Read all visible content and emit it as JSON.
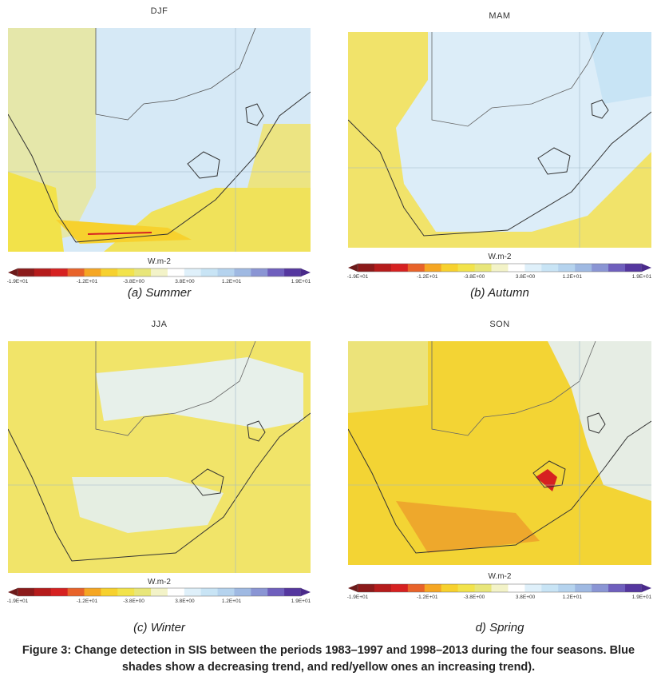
{
  "units": "W.m-2",
  "colorbar_colors": [
    "#8b1a1a",
    "#b51c1c",
    "#d62121",
    "#e8632a",
    "#f5a623",
    "#f7d12e",
    "#f2e34b",
    "#e8e67a",
    "#f3f3c8",
    "#ffffff",
    "#dff0fa",
    "#c8e4f5",
    "#b5d3ee",
    "#9fb9e2",
    "#8a95d4",
    "#6f5fbd",
    "#55379f"
  ],
  "colorbar_ticks": [
    "-1.9E+01",
    "-1.2E+01",
    "-3.8E+00",
    "3.8E+00",
    "1.2E+01",
    "1.9E+01"
  ],
  "panels": [
    {
      "season": "DJF",
      "caption": "(a) Summer"
    },
    {
      "season": "MAM",
      "caption": "(b) Autumn"
    },
    {
      "season": "JJA",
      "caption": "(c) Winter"
    },
    {
      "season": "SON",
      "caption": "d) Spring"
    }
  ],
  "figure_caption": "Figure 3: Change detection in SIS between the periods 1983–1997 and 1998–2013 during the four seasons. Blue shades show a decreasing trend, and red/yellow ones an increasing trend)."
}
